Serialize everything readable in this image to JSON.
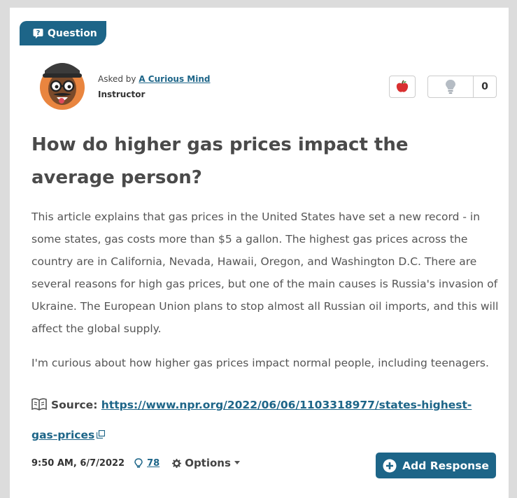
{
  "tag": "Question",
  "author": {
    "prefix": "Asked by",
    "name": "A Curious Mind",
    "role": "Instructor"
  },
  "reactions": {
    "lightbulb_count": "0"
  },
  "title": "How do higher gas prices impact the average person?",
  "paragraphs": [
    "This article explains that gas prices in the United States have set a new record - in some states, gas costs more than $5 a gallon. The highest gas prices across the country are in California, Nevada, Hawaii, Oregon, and Washington D.C. There are several reasons for high gas prices, but one of the main causes is Russia's invasion of Ukraine. The European Union plans to stop almost all Russian oil imports, and this will affect the global supply.",
    "I'm curious about how higher gas prices impact normal people, including teenagers."
  ],
  "source": {
    "label": "Source:",
    "url": "https://www.npr.org/2022/06/06/1103318977/states-highest-gas-prices"
  },
  "footer": {
    "timestamp": "9:50 AM, 6/7/2022",
    "responses": "78",
    "options": "Options",
    "button": "Add Response"
  }
}
